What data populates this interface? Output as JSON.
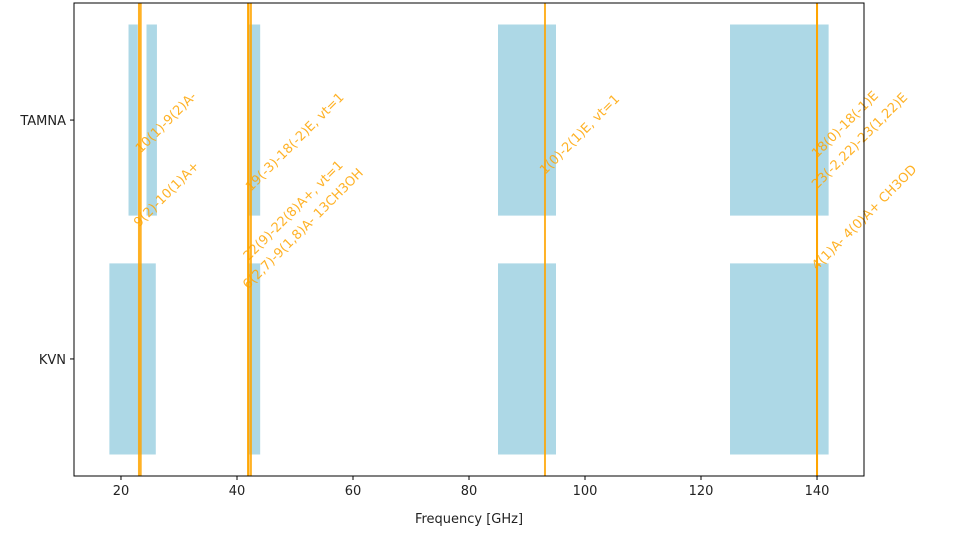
{
  "chart_data": {
    "type": "range_bar",
    "categories": [
      "KVN",
      "TAMNA"
    ],
    "ranges": [
      [
        [
          18,
          26
        ],
        [
          42,
          44
        ],
        [
          85,
          95
        ],
        [
          125,
          142
        ]
      ],
      [
        [
          21.3,
          22.9
        ],
        [
          24.4,
          26.2
        ],
        [
          42,
          44
        ],
        [
          85,
          95
        ],
        [
          125,
          142
        ]
      ]
    ],
    "bar_color": "#add8e6",
    "xlabel": "Frequency [GHz]",
    "xlim": [
      11.9,
      148.1
    ],
    "xticks": [
      20,
      40,
      60,
      80,
      100,
      120,
      140
    ],
    "ylim": [
      -0.49,
      1.49
    ],
    "line_color": "#ffa500",
    "lines": [
      {
        "x": 23.4,
        "y": 0.86,
        "label": "10(1)-9(2)A-"
      },
      {
        "x": 23.1,
        "y": 0.55,
        "label": "9(2)-10(1)A+"
      },
      {
        "x": 42.4,
        "y": 0.7,
        "label": "19(-3)-18(-2)E, vt=1"
      },
      {
        "x": 42.0,
        "y": 0.41,
        "label": "22(9)-22(8)A+, vt=1"
      },
      {
        "x": 41.9,
        "y": 0.29,
        "label": "6(2,7)-9(1,8)A- 13CH3OH"
      },
      {
        "x": 93.1,
        "y": 0.77,
        "label": "1(0)-2(1)E, vt=1"
      },
      {
        "x": 140,
        "y": 0.84,
        "label": "18(0)-18(-1)E"
      },
      {
        "x": 140,
        "y": 0.71,
        "label": "23(-2,22)-23(1,22)E"
      },
      {
        "x": 140,
        "y": 0.37,
        "label": "4(1)A- 4(0)A+ CH3OD"
      }
    ]
  }
}
